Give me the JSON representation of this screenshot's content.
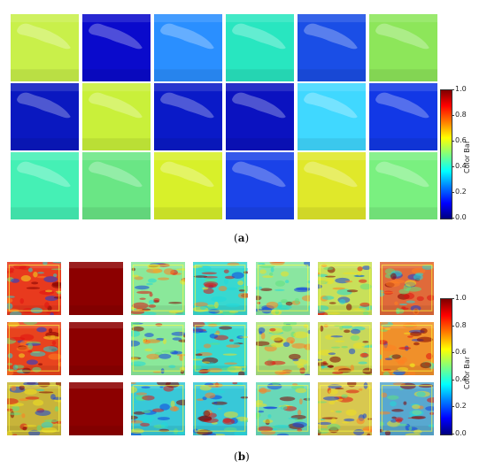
{
  "panel_a": {
    "caption_letter": "a",
    "colorbar": {
      "label": "Color Bar",
      "ticks": [
        "1.0",
        "0.8",
        "0.6",
        "0.4",
        "0.2",
        "0.0"
      ]
    },
    "tiles": [
      [
        "#c9f04a",
        "#0a0acc",
        "#2a8fff",
        "#28e6c0",
        "#1a4ee6",
        "#8de65a"
      ],
      [
        "#0a18c0",
        "#c9f03a",
        "#0a1ac8",
        "#0b12c0",
        "#40d8ff",
        "#1238e6"
      ],
      [
        "#45f0b5",
        "#6ae685",
        "#d8f02a",
        "#1a42e8",
        "#e0e82a",
        "#7af080"
      ]
    ]
  },
  "panel_b": {
    "caption_letter": "b",
    "colorbar": {
      "label": "Color Bar",
      "ticks": [
        "1.0",
        "0.8",
        "0.6",
        "0.4",
        "0.2",
        "0.0"
      ]
    },
    "tiles": [
      [
        "#e83a1e",
        "#8c0000",
        "#8ae89a",
        "#38d8d0",
        "#8ae6a0",
        "#c8e05a",
        "#e06a3a"
      ],
      [
        "#e8441e",
        "#8c0000",
        "#8ae89a",
        "#38d8d0",
        "#a8e080",
        "#c8d85a",
        "#f0902a"
      ],
      [
        "#c8b43a",
        "#8c0000",
        "#38c8d8",
        "#38c8d8",
        "#68d8b8",
        "#d8c850",
        "#58a8d0"
      ]
    ]
  }
}
